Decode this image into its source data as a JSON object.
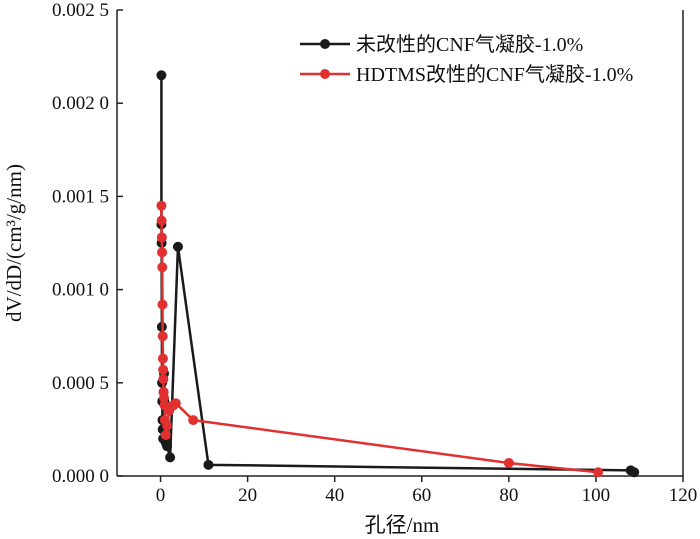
{
  "chart_data": {
    "type": "line",
    "xlabel": "孔径/nm",
    "ylabel": "dV/dD/(cm³/g/nm)",
    "xlim": [
      -10,
      120
    ],
    "ylim": [
      0,
      0.0025
    ],
    "x_ticks": [
      "0",
      "20",
      "40",
      "60",
      "80",
      "100",
      "120"
    ],
    "x_tick_values": [
      0,
      20,
      40,
      60,
      80,
      100,
      120
    ],
    "y_ticks": [
      "0.000 0",
      "0.000 5",
      "0.001 0",
      "0.001 5",
      "0.002 0",
      "0.002 5"
    ],
    "y_tick_values": [
      0,
      0.0005,
      0.001,
      0.0015,
      0.002,
      0.0025
    ],
    "legend_position": "top-right",
    "series": [
      {
        "name": "未改性的CNF气凝胶-1.0%",
        "color": "#1a1a1a",
        "points": [
          [
            0.2,
            0.00215
          ],
          [
            0.2,
            0.00135
          ],
          [
            0.25,
            0.00125
          ],
          [
            0.3,
            0.0008
          ],
          [
            0.35,
            0.0005
          ],
          [
            0.4,
            0.0004
          ],
          [
            0.45,
            0.0003
          ],
          [
            0.5,
            0.00025
          ],
          [
            0.6,
            0.0002
          ],
          [
            0.7,
            0.00045
          ],
          [
            0.8,
            0.00055
          ],
          [
            0.9,
            0.0004
          ],
          [
            1.0,
            0.00025
          ],
          [
            1.2,
            0.00018
          ],
          [
            1.5,
            0.00016
          ],
          [
            2.2,
            0.0001
          ],
          [
            4.0,
            0.00123
          ],
          [
            11.0,
            6e-05
          ],
          [
            108.0,
            3e-05
          ],
          [
            108.8,
            2e-05
          ]
        ]
      },
      {
        "name": "HDTMS改性的CNF气凝胶-1.0%",
        "color": "#e03030",
        "points": [
          [
            0.2,
            0.00145
          ],
          [
            0.25,
            0.00137
          ],
          [
            0.3,
            0.00128
          ],
          [
            0.35,
            0.0012
          ],
          [
            0.4,
            0.00112
          ],
          [
            0.45,
            0.00092
          ],
          [
            0.5,
            0.00075
          ],
          [
            0.55,
            0.00063
          ],
          [
            0.6,
            0.00057
          ],
          [
            0.65,
            0.00052
          ],
          [
            0.7,
            0.00045
          ],
          [
            0.8,
            0.00042
          ],
          [
            0.9,
            0.00038
          ],
          [
            1.0,
            0.0003
          ],
          [
            1.2,
            0.00022
          ],
          [
            1.5,
            0.00027
          ],
          [
            2.0,
            0.00035
          ],
          [
            3.0,
            0.00038
          ],
          [
            3.5,
            0.00039
          ],
          [
            7.5,
            0.0003
          ],
          [
            80.0,
            7e-05
          ],
          [
            100.5,
            2e-05
          ]
        ]
      }
    ]
  }
}
